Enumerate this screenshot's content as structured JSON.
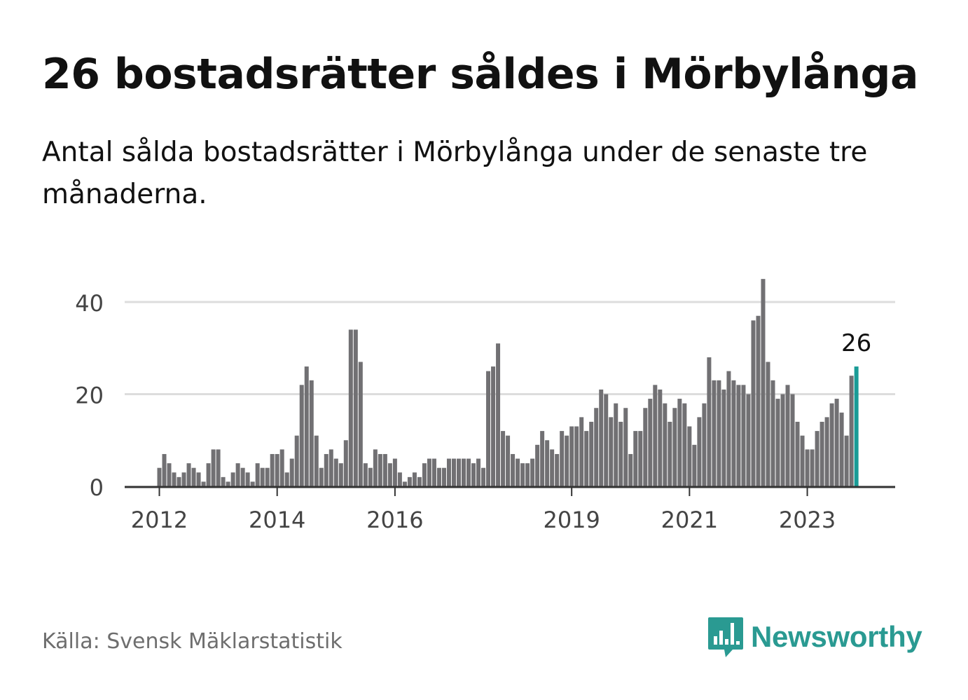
{
  "title": "26 bostadsrätter såldes i Mörbylånga",
  "subtitle": "Antal sålda bostadsrätter i Mörbylånga under de senaste tre månaderna.",
  "source": "Källa: Svensk Mäklarstatistik",
  "brand": {
    "name": "Newsworthy",
    "icon": "newsworthy-chart-bubble-icon",
    "color": "#2a9a92"
  },
  "colors": {
    "bar": "#717073",
    "highlight": "#1a9b96",
    "grid": "#dddddd",
    "axis": "#333333",
    "tick_text": "#444444"
  },
  "chart_data": {
    "type": "bar",
    "title": "26 bostadsrätter såldes i Mörbylånga",
    "xlabel": "",
    "ylabel": "",
    "ylim": [
      0,
      45
    ],
    "yticks": [
      0,
      20,
      40
    ],
    "grid": true,
    "x_tick_labels": [
      {
        "label": "2012",
        "index": 0
      },
      {
        "label": "2014",
        "index": 24
      },
      {
        "label": "2016",
        "index": 48
      },
      {
        "label": "2019",
        "index": 84
      },
      {
        "label": "2021",
        "index": 108
      },
      {
        "label": "2023",
        "index": 132
      }
    ],
    "highlight": {
      "index": 142,
      "label": "26"
    },
    "series": [
      {
        "name": "Antal sålda bostadsrätter (senaste tre månaderna)",
        "start": "2012-01",
        "values": [
          4,
          7,
          5,
          3,
          2,
          3,
          5,
          4,
          3,
          1,
          5,
          8,
          8,
          2,
          1,
          3,
          5,
          4,
          3,
          1,
          5,
          4,
          4,
          7,
          7,
          8,
          3,
          6,
          11,
          22,
          26,
          23,
          11,
          4,
          7,
          8,
          6,
          5,
          10,
          34,
          34,
          27,
          5,
          4,
          8,
          7,
          7,
          5,
          6,
          3,
          1,
          2,
          3,
          2,
          5,
          6,
          6,
          4,
          4,
          6,
          6,
          6,
          6,
          6,
          5,
          6,
          4,
          25,
          26,
          31,
          12,
          11,
          7,
          6,
          5,
          5,
          6,
          9,
          12,
          10,
          8,
          7,
          12,
          11,
          13,
          13,
          15,
          12,
          14,
          17,
          21,
          20,
          15,
          18,
          14,
          17,
          7,
          12,
          12,
          17,
          19,
          22,
          21,
          18,
          14,
          17,
          19,
          18,
          13,
          9,
          15,
          18,
          28,
          23,
          23,
          21,
          25,
          23,
          22,
          22,
          20,
          36,
          37,
          45,
          27,
          23,
          19,
          20,
          22,
          20,
          14,
          11,
          8,
          8,
          12,
          14,
          15,
          18,
          19,
          16,
          11,
          24,
          26
        ]
      }
    ]
  }
}
